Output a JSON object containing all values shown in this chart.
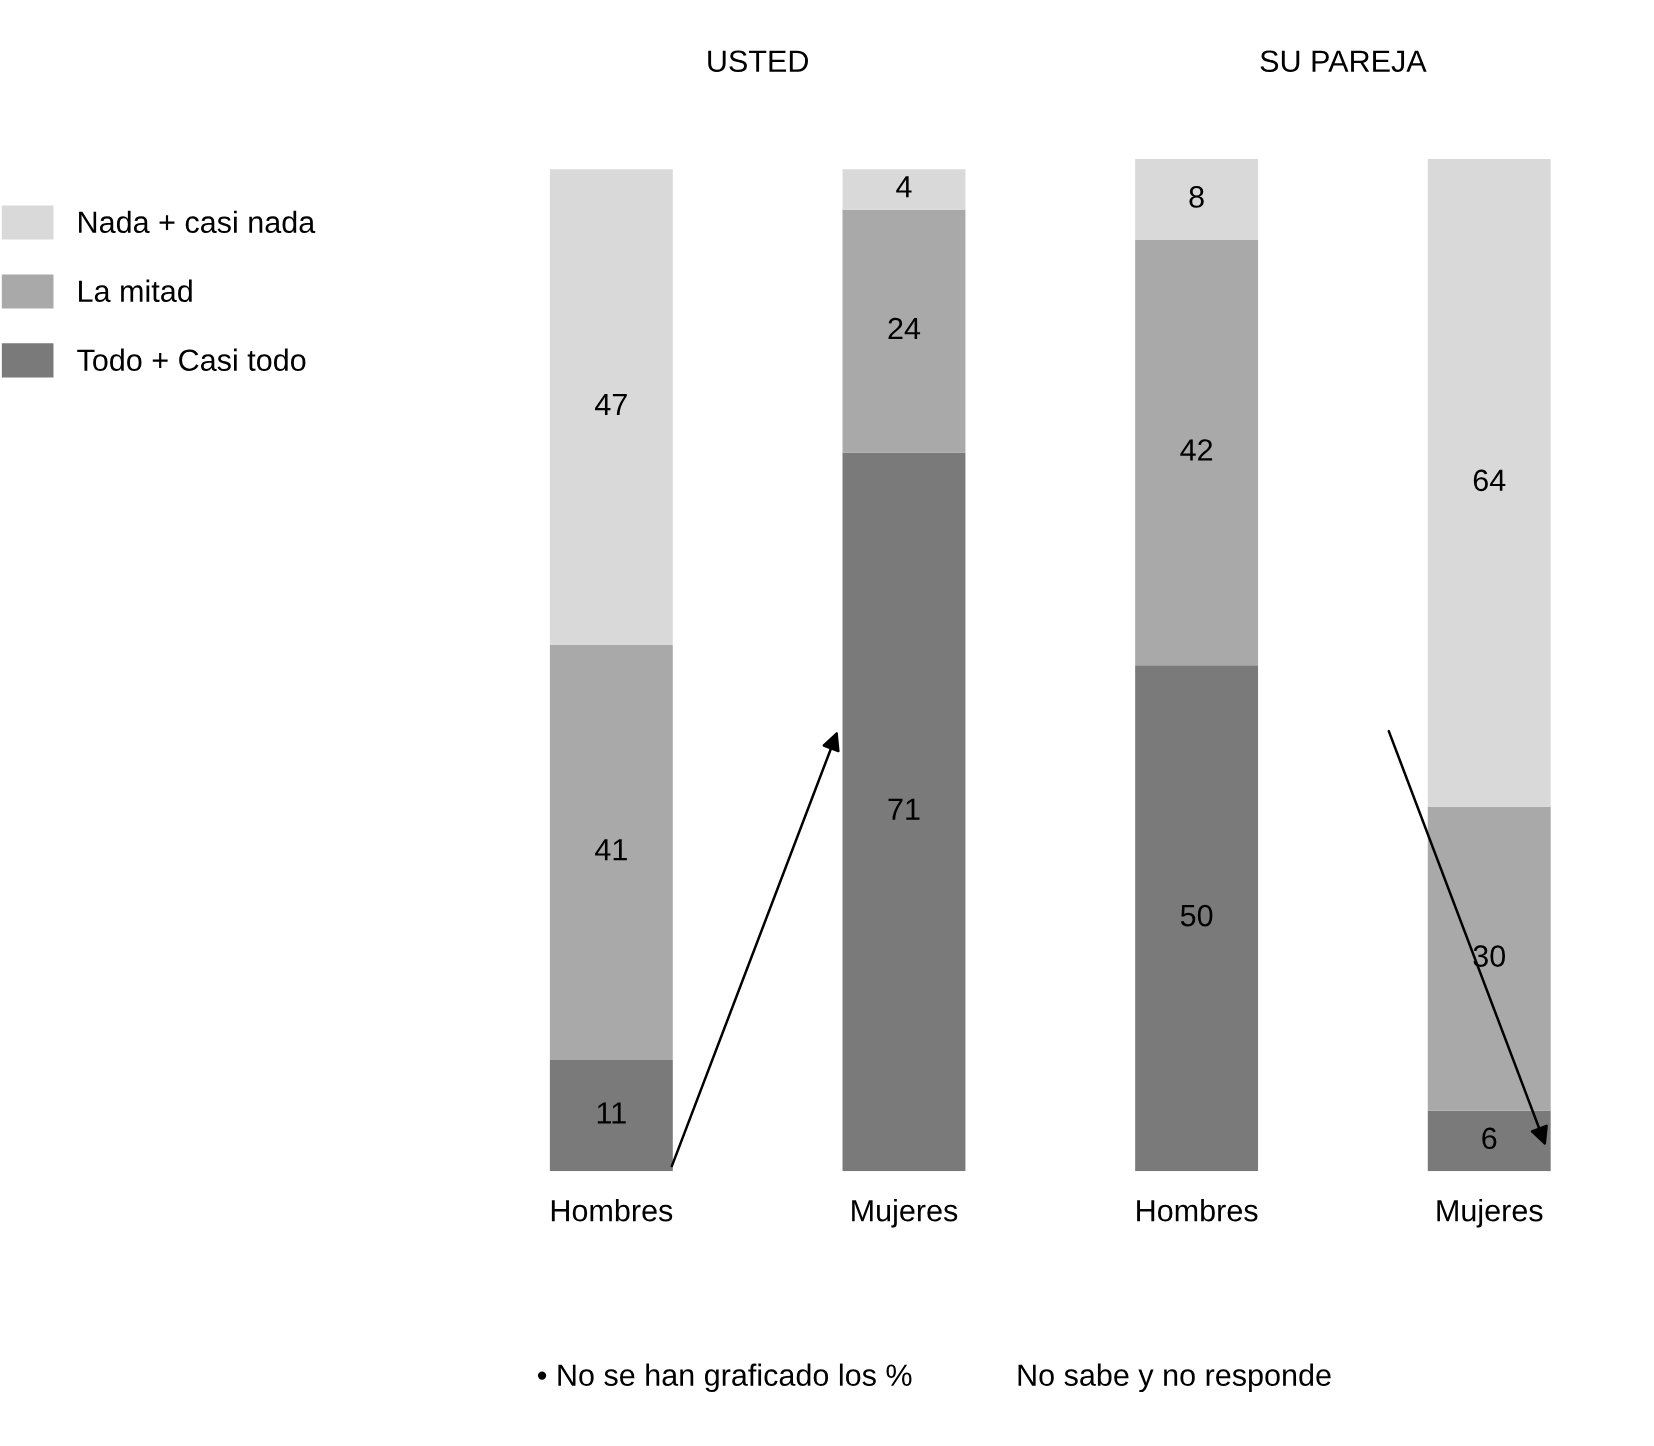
{
  "chart_data": {
    "type": "bar",
    "stacked": true,
    "categories": [
      "Hombres",
      "Mujeres",
      "Hombres",
      "Mujeres"
    ],
    "series": [
      {
        "name": "Todo + Casi todo",
        "color": "#7a7a7a",
        "values": [
          11,
          71,
          50,
          6
        ]
      },
      {
        "name": "La mitad",
        "color": "#a9a9a9",
        "values": [
          41,
          24,
          42,
          30
        ]
      },
      {
        "name": "Nada + casi nada",
        "color": "#d9d9d9",
        "values": [
          47,
          4,
          8,
          64
        ]
      }
    ],
    "data_labels": true,
    "legend": "top left",
    "grid": false,
    "annotations": [
      "USTED",
      "SU PAREJA",
      "• No se han graficado los %",
      "No sabe y no responde"
    ]
  }
}
